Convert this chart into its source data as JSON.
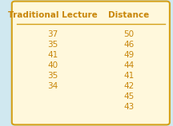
{
  "col1_header": "Traditional Lecture",
  "col2_header": "Distance",
  "col1_values": [
    "37",
    "35",
    "41",
    "40",
    "35",
    "34",
    "",
    ""
  ],
  "col2_values": [
    "50",
    "46",
    "49",
    "44",
    "41",
    "42",
    "45",
    "43"
  ],
  "background_color": "#FFF8DC",
  "border_color": "#D4A017",
  "header_color": "#C8860A",
  "text_color": "#C8860A",
  "outer_bg": "#D0E8F0"
}
